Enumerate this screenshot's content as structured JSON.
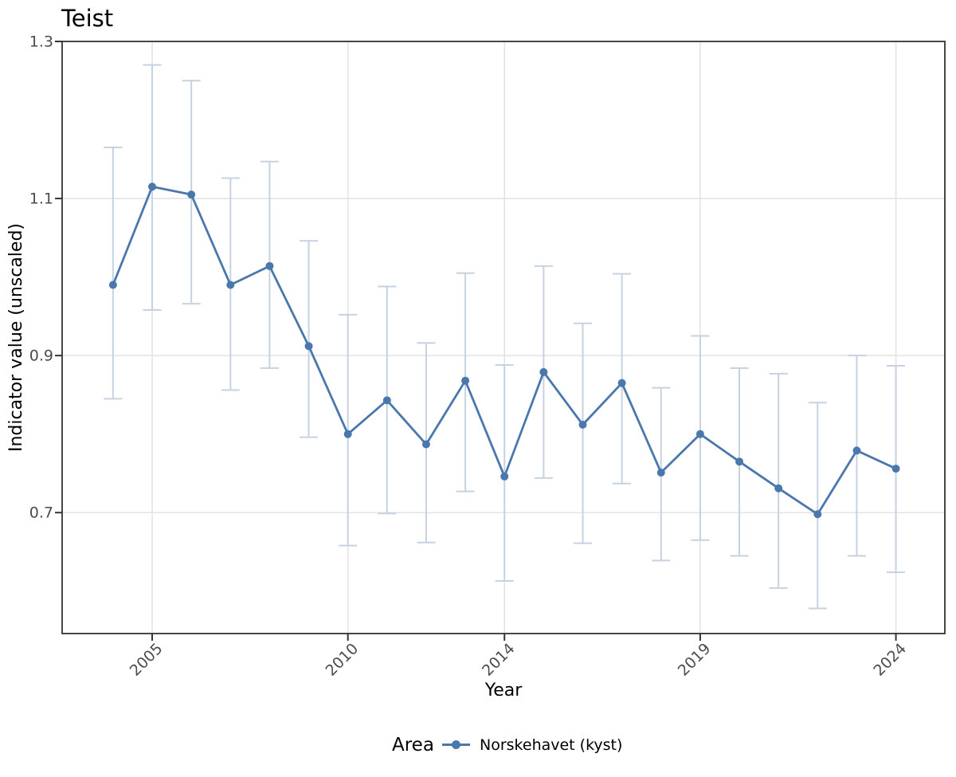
{
  "title": "Teist",
  "colors": {
    "background": "#ffffff",
    "grid": "#e4e4e4",
    "panel_border": "#333333",
    "tick": "#333333",
    "tick_label": "#4d4d4d",
    "text": "#000000",
    "series_line": "#4a78ad",
    "error_bar": "#c6d2e2"
  },
  "chart_data": {
    "type": "line",
    "title": "Teist",
    "xlabel": "Year",
    "ylabel": "Indicator value (unscaled)",
    "legend": {
      "title": "Area",
      "position": "bottom",
      "entries": [
        "Norskehavet (kyst)"
      ]
    },
    "grid": true,
    "error_bars": true,
    "xlim": [
      2002.7,
      2025.25
    ],
    "ylim": [
      0.546,
      1.3
    ],
    "x_ticks": [
      {
        "value": 2005,
        "label": "2005"
      },
      {
        "value": 2010,
        "label": "2010"
      },
      {
        "value": 2014,
        "label": "2014"
      },
      {
        "value": 2019,
        "label": "2019"
      },
      {
        "value": 2024,
        "label": "2024"
      }
    ],
    "y_ticks": [
      {
        "value": 1.3,
        "label": "1.3"
      },
      {
        "value": 1.1,
        "label": "1.1"
      },
      {
        "value": 0.9,
        "label": "0.9"
      },
      {
        "value": 0.7,
        "label": "0.7"
      }
    ],
    "series": [
      {
        "name": "Norskehavet (kyst)",
        "color": "#4a78ad",
        "error_color": "#c6d2e2",
        "points": [
          {
            "x": 2004,
            "y": 0.99,
            "lo": 0.845,
            "hi": 1.165
          },
          {
            "x": 2005,
            "y": 1.115,
            "lo": 0.958,
            "hi": 1.27
          },
          {
            "x": 2006,
            "y": 1.105,
            "lo": 0.966,
            "hi": 1.25
          },
          {
            "x": 2007,
            "y": 0.99,
            "lo": 0.856,
            "hi": 1.126
          },
          {
            "x": 2008,
            "y": 1.014,
            "lo": 0.884,
            "hi": 1.147
          },
          {
            "x": 2009,
            "y": 0.912,
            "lo": 0.796,
            "hi": 1.046
          },
          {
            "x": 2010,
            "y": 0.8,
            "lo": 0.658,
            "hi": 0.952
          },
          {
            "x": 2011,
            "y": 0.843,
            "lo": 0.699,
            "hi": 0.988
          },
          {
            "x": 2012,
            "y": 0.787,
            "lo": 0.662,
            "hi": 0.916
          },
          {
            "x": 2013,
            "y": 0.868,
            "lo": 0.727,
            "hi": 1.005
          },
          {
            "x": 2014,
            "y": 0.746,
            "lo": 0.613,
            "hi": 0.888
          },
          {
            "x": 2015,
            "y": 0.879,
            "lo": 0.744,
            "hi": 1.014
          },
          {
            "x": 2016,
            "y": 0.812,
            "lo": 0.661,
            "hi": 0.941
          },
          {
            "x": 2017,
            "y": 0.865,
            "lo": 0.737,
            "hi": 1.004
          },
          {
            "x": 2018,
            "y": 0.751,
            "lo": 0.639,
            "hi": 0.859
          },
          {
            "x": 2019,
            "y": 0.8,
            "lo": 0.665,
            "hi": 0.925
          },
          {
            "x": 2020,
            "y": 0.765,
            "lo": 0.645,
            "hi": 0.884
          },
          {
            "x": 2021,
            "y": 0.731,
            "lo": 0.604,
            "hi": 0.877
          },
          {
            "x": 2022,
            "y": 0.698,
            "lo": 0.578,
            "hi": 0.84
          },
          {
            "x": 2023,
            "y": 0.779,
            "lo": 0.645,
            "hi": 0.9
          },
          {
            "x": 2024,
            "y": 0.756,
            "lo": 0.624,
            "hi": 0.887
          }
        ]
      }
    ]
  }
}
